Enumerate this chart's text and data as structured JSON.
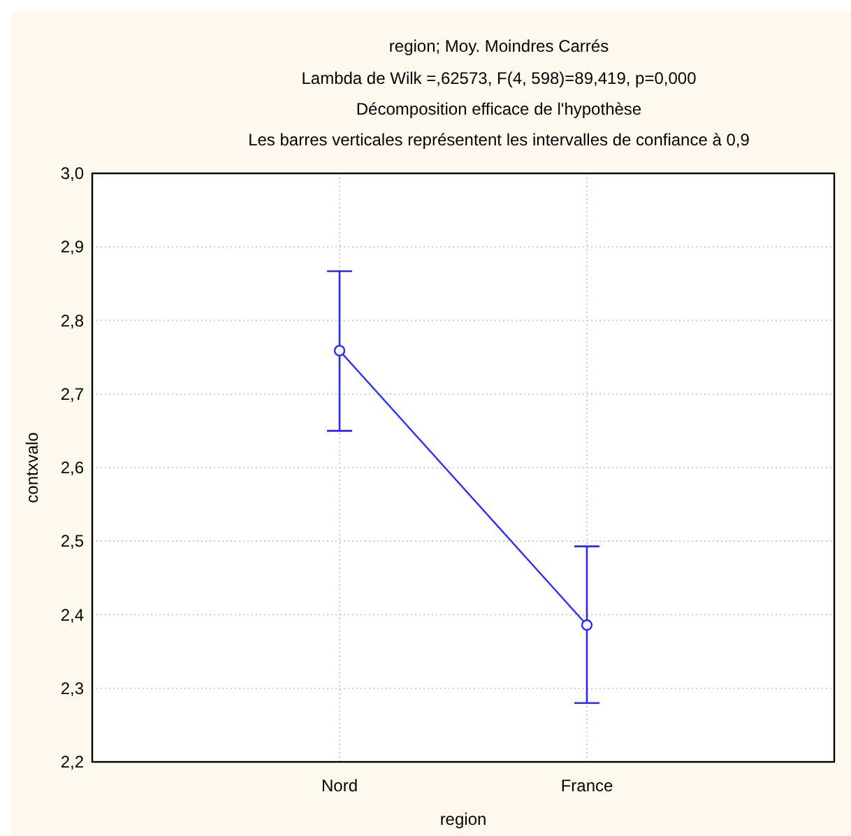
{
  "chart_data": {
    "type": "line",
    "title": "region; Moy. Moindres Carrés",
    "subtitle": "Lambda de Wilk =,62573, F(4, 598)=89,419, p=0,000\nDécomposition efficace de l'hypothèse\nLes barres verticales représentent les intervalles de confiance à 0,9",
    "xlabel": "region",
    "ylabel": "contxvalo",
    "categories": [
      "Nord",
      "France"
    ],
    "series": [
      {
        "color": "#2a2aff",
        "values": [
          2.759,
          2.386
        ],
        "errors": [
          [
            2.65,
            2.867
          ],
          [
            2.28,
            2.493
          ]
        ]
      }
    ],
    "ylim": [
      2.2,
      3.0
    ],
    "yticks": [
      {
        "value": 2.2,
        "label": "2,2"
      },
      {
        "value": 2.3,
        "label": "2,3"
      },
      {
        "value": 2.4,
        "label": "2,4"
      },
      {
        "value": 2.5,
        "label": "2,5"
      },
      {
        "value": 2.6,
        "label": "2,6"
      },
      {
        "value": 2.7,
        "label": "2,7"
      },
      {
        "value": 2.8,
        "label": "2,8"
      },
      {
        "value": 2.9,
        "label": "2,9"
      },
      {
        "value": 3.0,
        "label": "3,0"
      }
    ],
    "grid": true,
    "marker": "circle",
    "line_style": "solid"
  }
}
